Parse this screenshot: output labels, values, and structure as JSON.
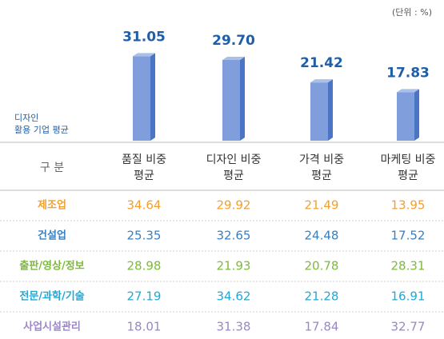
{
  "unit": "(단위 : %)",
  "chart_data": {
    "type": "bar",
    "label": [
      "디자인",
      "활용 기업 평균"
    ],
    "categories": [
      [
        "품질 비중",
        "평균"
      ],
      [
        "디자인 비중",
        "평균"
      ],
      [
        "가격 비중",
        "평균"
      ],
      [
        "마케팅 비중",
        "평균"
      ]
    ],
    "values": [
      31.05,
      29.7,
      21.42,
      17.83
    ],
    "value_labels": [
      "31.05",
      "29.70",
      "21.42",
      "17.83"
    ],
    "color": "#7f9edb",
    "side_color": "#4a74c4",
    "label_color": "#1f5fa8"
  },
  "table": {
    "header": "구 분",
    "rows": [
      {
        "name": "제조업",
        "color": "#f0a030",
        "values": [
          34.64,
          29.92,
          21.49,
          13.95
        ]
      },
      {
        "name": "건설업",
        "color": "#3a7fc0",
        "values": [
          25.35,
          32.65,
          24.48,
          17.52
        ]
      },
      {
        "name": "출판/영상/정보",
        "color": "#7cba3a",
        "values": [
          28.98,
          21.93,
          20.78,
          28.31
        ]
      },
      {
        "name": "전문/과학/기술",
        "color": "#22a8d4",
        "values": [
          27.19,
          34.62,
          21.28,
          16.91
        ]
      },
      {
        "name": "사업시설관리",
        "color": "#9a88c4",
        "values": [
          18.01,
          31.38,
          17.84,
          32.77
        ]
      }
    ]
  }
}
